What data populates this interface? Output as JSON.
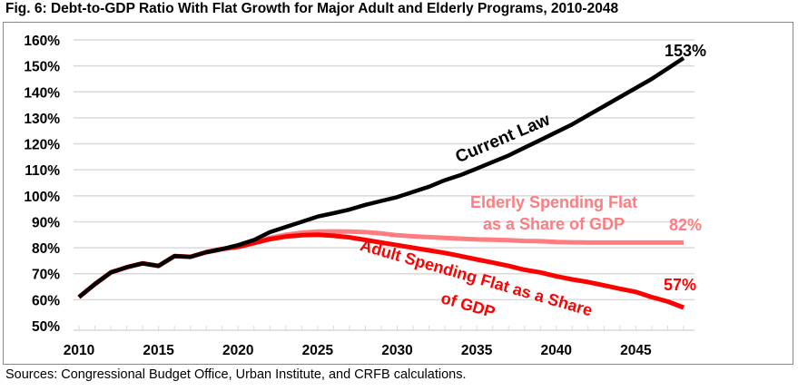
{
  "chart_data": {
    "type": "line",
    "title": "Fig. 6: Debt-to-GDP Ratio With Flat Growth for Major Adult and Elderly Programs, 2010-2048",
    "xlabel": "",
    "ylabel": "",
    "x": [
      2010,
      2011,
      2012,
      2013,
      2014,
      2015,
      2016,
      2017,
      2018,
      2019,
      2020,
      2021,
      2022,
      2023,
      2024,
      2025,
      2026,
      2027,
      2028,
      2029,
      2030,
      2031,
      2032,
      2033,
      2034,
      2035,
      2036,
      2037,
      2038,
      2039,
      2040,
      2041,
      2042,
      2043,
      2044,
      2045,
      2046,
      2047,
      2048
    ],
    "xlim": [
      2010,
      2048
    ],
    "ylim": [
      50,
      160
    ],
    "x_ticks": [
      "2010",
      "2015",
      "2020",
      "2025",
      "2030",
      "2035",
      "2040",
      "2045"
    ],
    "y_ticks": [
      "50%",
      "60%",
      "70%",
      "80%",
      "90%",
      "100%",
      "110%",
      "120%",
      "130%",
      "140%",
      "150%",
      "160%"
    ],
    "grid": true,
    "series": [
      {
        "name": "Current Law",
        "label_lines": [
          "Current Law"
        ],
        "end_label": "153%",
        "color": "#000000",
        "values": [
          61,
          66,
          70.5,
          72.5,
          74,
          73,
          76.8,
          76.5,
          78.3,
          79.5,
          81,
          83,
          86,
          88,
          90,
          92,
          93.3,
          94.7,
          96.5,
          98,
          99.5,
          101.5,
          103.5,
          106,
          108,
          110.5,
          113,
          115.5,
          118.5,
          121.5,
          124.5,
          127.5,
          131,
          134.5,
          138,
          141.5,
          145,
          149,
          153
        ]
      },
      {
        "name": "Elderly Spending Flat as a Share of GDP",
        "label_lines": [
          "Elderly Spending Flat",
          "as a Share of GDP"
        ],
        "end_label": "82%",
        "color": "#ff7c80",
        "values": [
          61,
          66,
          70.5,
          72.5,
          74,
          73,
          76.8,
          76.5,
          78.3,
          79.5,
          80.5,
          82,
          83.8,
          85,
          85.8,
          86.2,
          86.3,
          86.2,
          86,
          85.5,
          84.8,
          84.4,
          84.1,
          83.8,
          83.5,
          83.2,
          83.1,
          82.9,
          82.6,
          82.5,
          82.2,
          82.1,
          82,
          82,
          82,
          82,
          82,
          82,
          82
        ]
      },
      {
        "name": "Adult Spending Flat as a Share of GDP",
        "label_lines": [
          "Adult Spending Flat as a Share",
          "of GDP"
        ],
        "end_label": "57%",
        "color": "#ff0000",
        "values": [
          61,
          66,
          70.5,
          72.5,
          74,
          73,
          76.8,
          76.5,
          78.3,
          79.5,
          80.3,
          81.8,
          83.3,
          84.3,
          84.8,
          85,
          84.6,
          84,
          83,
          82,
          81,
          80,
          79,
          78,
          76.8,
          75.5,
          74.3,
          73,
          71.5,
          70.5,
          69,
          67.8,
          66.8,
          65.5,
          64.2,
          63,
          61,
          59.3,
          57
        ]
      }
    ]
  },
  "source": "Sources: Congressional Budget Office, Urban Institute, and CRFB calculations."
}
